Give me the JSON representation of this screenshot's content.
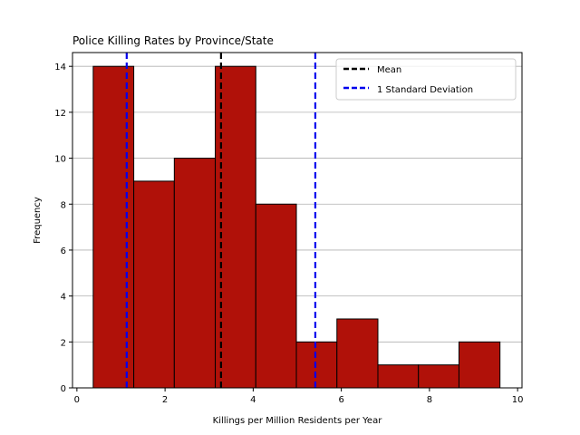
{
  "chart_data": {
    "type": "histogram",
    "title": "Police Killing Rates by Province/State",
    "xlabel": "Killings per Million Residents per Year",
    "ylabel": "Frequency",
    "xlim": [
      -0.1,
      10.1
    ],
    "ylim": [
      0,
      14.6
    ],
    "xticks": [
      0,
      2,
      4,
      6,
      8,
      10
    ],
    "yticks": [
      0,
      2,
      4,
      6,
      8,
      10,
      12,
      14
    ],
    "grid": "y",
    "bar_color": "#b01109",
    "bins": [
      {
        "start": 0.37,
        "end": 1.29,
        "count": 14
      },
      {
        "start": 1.29,
        "end": 2.21,
        "count": 9
      },
      {
        "start": 2.21,
        "end": 3.14,
        "count": 10
      },
      {
        "start": 3.14,
        "end": 4.06,
        "count": 14
      },
      {
        "start": 4.06,
        "end": 4.98,
        "count": 8
      },
      {
        "start": 4.98,
        "end": 5.9,
        "count": 2
      },
      {
        "start": 5.9,
        "end": 6.83,
        "count": 3
      },
      {
        "start": 6.83,
        "end": 7.75,
        "count": 1
      },
      {
        "start": 7.75,
        "end": 8.67,
        "count": 1
      },
      {
        "start": 8.67,
        "end": 9.6,
        "count": 2
      }
    ],
    "reference_lines": [
      {
        "name": "Mean",
        "x": 3.27,
        "color": "#000000",
        "style": "dashed"
      },
      {
        "name": "1 Standard Deviation",
        "x": 1.13,
        "color": "#0000ee",
        "style": "dashed"
      },
      {
        "name": "1 Standard Deviation",
        "x": 5.41,
        "color": "#0000ee",
        "style": "dashed"
      }
    ],
    "legend": {
      "placement": "top-right",
      "entries": [
        {
          "label": "Mean",
          "color": "#000000"
        },
        {
          "label": "1 Standard Deviation",
          "color": "#0000ee"
        }
      ]
    }
  }
}
